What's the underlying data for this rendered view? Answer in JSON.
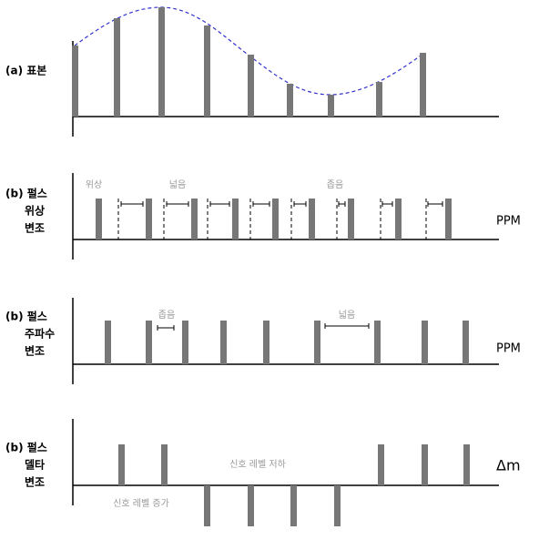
{
  "panels": [
    {
      "label": [
        "(a) 표본"
      ]
    },
    {
      "label": [
        "(b) 펄스",
        "위상",
        "변조"
      ],
      "annotations": [
        "위상",
        "넓음",
        "좁음"
      ],
      "side_label": "PPM"
    },
    {
      "label": [
        "(b) 펄스",
        "주파수",
        "변조"
      ],
      "annotations": [
        "좁음",
        "넓음"
      ],
      "side_label": "PPM"
    },
    {
      "label": [
        "(b) 펄스",
        "델타",
        "변조"
      ],
      "annotations": [
        "신호 레벨 저하",
        "신호 레벨 증가"
      ],
      "side_label": "Δm"
    }
  ]
}
